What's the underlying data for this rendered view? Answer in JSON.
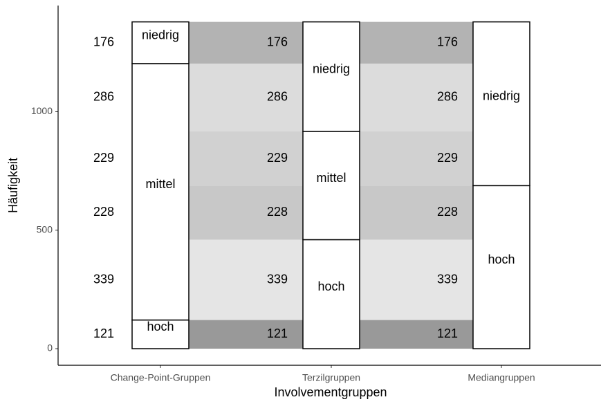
{
  "chart_data": {
    "type": "alluvial",
    "xlabel": "Involvementgruppen",
    "ylabel": "Häufigkeit",
    "ylim": [
      -70,
      1448
    ],
    "yticks": [
      0,
      500,
      1000
    ],
    "axes": [
      "Change-Point-Gruppen",
      "Terzilgruppen",
      "Mediangruppen"
    ],
    "strata": [
      [
        {
          "label": "hoch",
          "value": 121
        },
        {
          "label": "mittel",
          "value": 1082
        },
        {
          "label": "niedrig",
          "value": 176
        }
      ],
      [
        {
          "label": "hoch",
          "value": 460
        },
        {
          "label": "mittel",
          "value": 457
        },
        {
          "label": "niedrig",
          "value": 462
        }
      ],
      [
        {
          "label": "hoch",
          "value": 688
        },
        {
          "label": "niedrig",
          "value": 691
        }
      ]
    ],
    "flows": {
      "values": [
        121,
        339,
        228,
        229,
        286,
        176
      ],
      "colors": [
        "#999999",
        "#e5e5e5",
        "#c8c8c8",
        "#d1d1d1",
        "#dcdcdc",
        "#b3b3b3"
      ]
    }
  }
}
